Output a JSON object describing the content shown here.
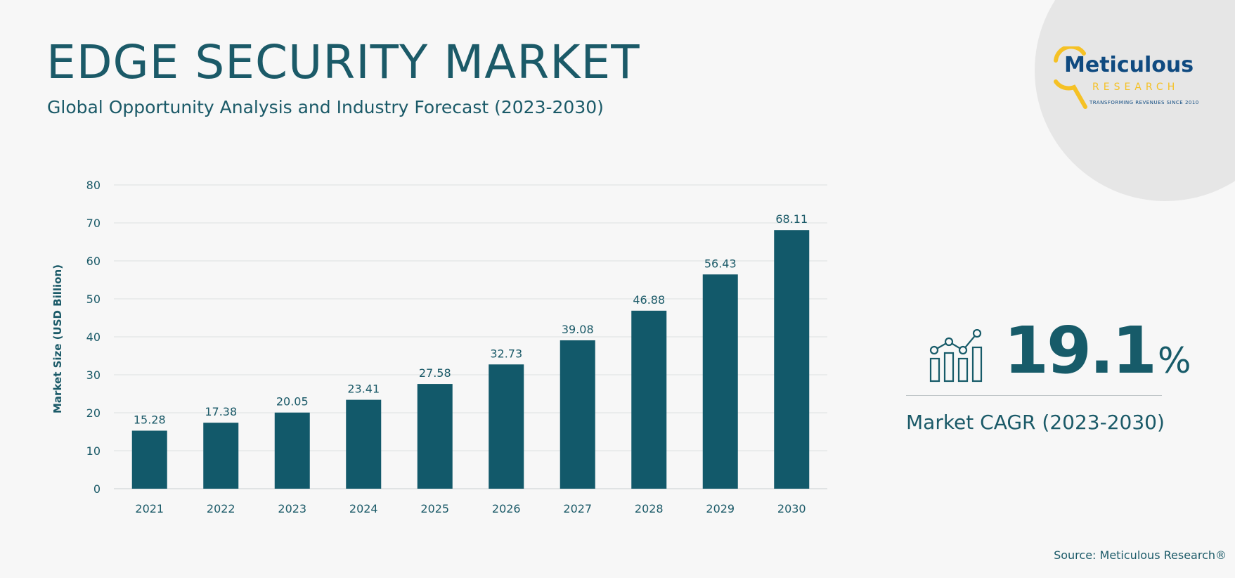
{
  "header": {
    "title": "EDGE SECURITY MARKET",
    "subtitle": "Global Opportunity Analysis and Industry Forecast (2023-2030)"
  },
  "logo": {
    "name": "Meticulous",
    "sub": "RESEARCH",
    "tagline": "TRANSFORMING REVENUES SINCE 2010"
  },
  "colors": {
    "bar": "#12596a",
    "accent": "#175b69",
    "logo_navy": "#0f4a80",
    "logo_yellow": "#f5c125"
  },
  "chart_data": {
    "type": "bar",
    "title": "",
    "xlabel": "",
    "ylabel": "Market Size (USD Billion)",
    "categories": [
      "2021",
      "2022",
      "2023",
      "2024",
      "2025",
      "2026",
      "2027",
      "2028",
      "2029",
      "2030"
    ],
    "values": [
      15.28,
      17.38,
      20.05,
      23.41,
      27.58,
      32.73,
      39.08,
      46.88,
      56.43,
      68.11
    ],
    "value_labels": [
      "15.28",
      "17.38",
      "20.05",
      "23.41",
      "27.58",
      "32.73",
      "39.08",
      "46.88",
      "56.43",
      "68.11"
    ],
    "ylim": [
      0,
      80
    ],
    "yticks": [
      "0",
      "10",
      "20",
      "30",
      "40",
      "50",
      "60",
      "70",
      "80"
    ],
    "grid": true
  },
  "cagr": {
    "icon": "growth-chart-icon",
    "value": "19.1",
    "unit": "%",
    "label": "Market CAGR (2023-2030)"
  },
  "footer": {
    "source": "Source: Meticulous Research®"
  }
}
